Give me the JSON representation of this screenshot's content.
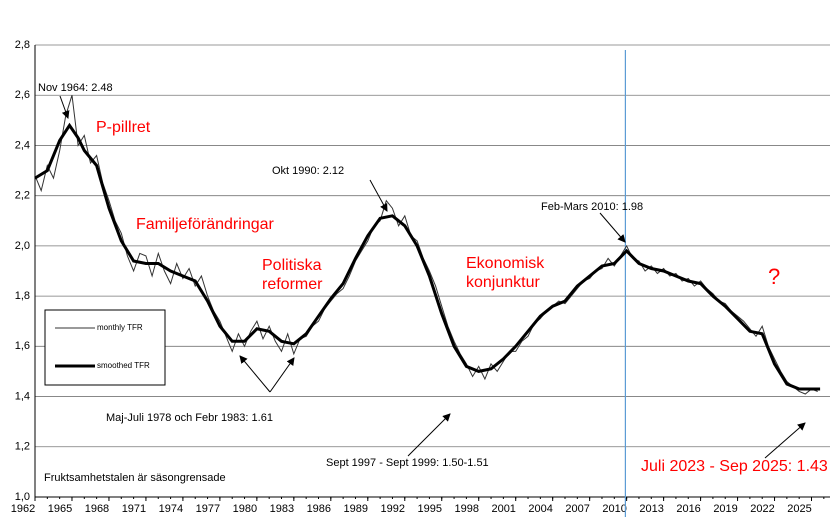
{
  "chart_data": {
    "type": "line",
    "xlim": [
      1962,
      2026.5
    ],
    "xticks": [
      1962,
      1965,
      1968,
      1971,
      1974,
      1977,
      1980,
      1983,
      1986,
      1989,
      1992,
      1995,
      1998,
      2001,
      2004,
      2007,
      2010,
      2013,
      2016,
      2019,
      2022,
      2025
    ],
    "ylim": [
      1.0,
      2.8
    ],
    "yticks": [
      {
        "value": 1.0,
        "label": "1,0"
      },
      {
        "value": 1.2,
        "label": "1,2"
      },
      {
        "value": 1.4,
        "label": "1,4"
      },
      {
        "value": 1.6,
        "label": "1,6"
      },
      {
        "value": 1.8,
        "label": "1,8"
      },
      {
        "value": 2.0,
        "label": "2,0"
      },
      {
        "value": 2.2,
        "label": "2,2"
      },
      {
        "value": 2.4,
        "label": "2,4"
      },
      {
        "value": 2.6,
        "label": "2,6"
      },
      {
        "value": 2.8,
        "label": "2,8"
      }
    ],
    "grid": true,
    "vline": {
      "x": 2009.9,
      "color": "#5b9bd5"
    },
    "series": [
      {
        "name": "monthly TFR",
        "color": "#333333",
        "x": [
          1962.0,
          1962.5,
          1963.0,
          1963.5,
          1964.0,
          1964.5,
          1965.0,
          1965.5,
          1966.0,
          1966.5,
          1967.0,
          1967.5,
          1968.0,
          1968.5,
          1969.0,
          1969.5,
          1970.0,
          1970.5,
          1971.0,
          1971.5,
          1972.0,
          1972.5,
          1973.0,
          1973.5,
          1974.0,
          1974.5,
          1975.0,
          1975.5,
          1976.0,
          1976.5,
          1977.0,
          1977.5,
          1978.0,
          1978.5,
          1979.0,
          1979.5,
          1980.0,
          1980.5,
          1981.0,
          1981.5,
          1982.0,
          1982.5,
          1983.0,
          1983.5,
          1984.0,
          1984.5,
          1985.0,
          1985.5,
          1986.0,
          1986.5,
          1987.0,
          1987.5,
          1988.0,
          1988.5,
          1989.0,
          1989.5,
          1990.0,
          1990.5,
          1991.0,
          1991.5,
          1992.0,
          1992.5,
          1993.0,
          1993.5,
          1994.0,
          1994.5,
          1995.0,
          1995.5,
          1996.0,
          1996.5,
          1997.0,
          1997.5,
          1998.0,
          1998.5,
          1999.0,
          1999.5,
          2000.0,
          2000.5,
          2001.0,
          2001.5,
          2002.0,
          2002.5,
          2003.0,
          2003.5,
          2004.0,
          2004.5,
          2005.0,
          2005.5,
          2006.0,
          2006.5,
          2007.0,
          2007.5,
          2008.0,
          2008.5,
          2009.0,
          2009.5,
          2010.0,
          2010.5,
          2011.0,
          2011.5,
          2012.0,
          2012.5,
          2013.0,
          2013.5,
          2014.0,
          2014.5,
          2015.0,
          2015.5,
          2016.0,
          2016.5,
          2017.0,
          2017.5,
          2018.0,
          2018.5,
          2019.0,
          2019.5,
          2020.0,
          2020.5,
          2021.0,
          2021.5,
          2022.0,
          2022.5,
          2023.0,
          2023.5,
          2024.0,
          2024.5,
          2025.0,
          2025.5
        ],
        "values": [
          2.28,
          2.22,
          2.32,
          2.27,
          2.38,
          2.52,
          2.6,
          2.4,
          2.44,
          2.33,
          2.36,
          2.25,
          2.18,
          2.1,
          2.05,
          1.96,
          1.9,
          1.97,
          1.96,
          1.88,
          1.97,
          1.9,
          1.85,
          1.93,
          1.87,
          1.91,
          1.84,
          1.88,
          1.8,
          1.74,
          1.7,
          1.64,
          1.58,
          1.65,
          1.6,
          1.66,
          1.7,
          1.63,
          1.68,
          1.62,
          1.58,
          1.65,
          1.57,
          1.63,
          1.64,
          1.68,
          1.7,
          1.75,
          1.78,
          1.81,
          1.83,
          1.88,
          1.94,
          1.98,
          2.02,
          2.08,
          2.1,
          2.18,
          2.15,
          2.08,
          2.12,
          2.04,
          2.02,
          1.95,
          1.9,
          1.84,
          1.76,
          1.68,
          1.62,
          1.57,
          1.53,
          1.48,
          1.52,
          1.47,
          1.53,
          1.5,
          1.54,
          1.58,
          1.58,
          1.62,
          1.64,
          1.69,
          1.71,
          1.74,
          1.76,
          1.78,
          1.77,
          1.8,
          1.83,
          1.86,
          1.87,
          1.9,
          1.91,
          1.95,
          1.92,
          1.96,
          2.0,
          1.95,
          1.94,
          1.9,
          1.92,
          1.89,
          1.91,
          1.88,
          1.89,
          1.86,
          1.87,
          1.84,
          1.86,
          1.83,
          1.81,
          1.78,
          1.77,
          1.74,
          1.72,
          1.7,
          1.67,
          1.64,
          1.68,
          1.6,
          1.55,
          1.5,
          1.46,
          1.44,
          1.42,
          1.41,
          1.43,
          1.42
        ]
      },
      {
        "name": "smoothed TFR",
        "color": "#000000",
        "x": [
          1962,
          1963,
          1964,
          1964.8,
          1965.5,
          1966,
          1967,
          1968,
          1969,
          1970,
          1971,
          1972,
          1973,
          1974,
          1975,
          1976,
          1977,
          1978,
          1979,
          1980,
          1981,
          1982,
          1983,
          1984,
          1985,
          1986,
          1987,
          1988,
          1989,
          1990,
          1991,
          1992,
          1993,
          1994,
          1995,
          1996,
          1997,
          1998,
          1999,
          2000,
          2001,
          2002,
          2003,
          2004,
          2005,
          2006,
          2007,
          2008,
          2009,
          2010,
          2011,
          2012,
          2013,
          2014,
          2015,
          2016,
          2017,
          2018,
          2019,
          2020,
          2021,
          2022,
          2023,
          2024,
          2025,
          2025.7
        ],
        "values": [
          2.27,
          2.3,
          2.42,
          2.48,
          2.43,
          2.38,
          2.32,
          2.15,
          2.02,
          1.94,
          1.93,
          1.93,
          1.9,
          1.88,
          1.86,
          1.78,
          1.68,
          1.62,
          1.62,
          1.67,
          1.66,
          1.62,
          1.61,
          1.65,
          1.72,
          1.79,
          1.85,
          1.95,
          2.04,
          2.11,
          2.12,
          2.08,
          2.0,
          1.88,
          1.73,
          1.6,
          1.52,
          1.5,
          1.51,
          1.55,
          1.6,
          1.66,
          1.72,
          1.76,
          1.78,
          1.84,
          1.88,
          1.92,
          1.93,
          1.98,
          1.93,
          1.91,
          1.9,
          1.88,
          1.86,
          1.85,
          1.8,
          1.76,
          1.71,
          1.66,
          1.65,
          1.53,
          1.45,
          1.43,
          1.43,
          1.43
        ]
      }
    ],
    "annotations": [
      {
        "text": "Nov 1964: 2.48",
        "color": "#000000"
      },
      {
        "text": "P-pillret",
        "color": "#ff0000"
      },
      {
        "text": "Okt 1990: 2.12",
        "color": "#000000"
      },
      {
        "text": "Familjeförändringar",
        "color": "#ff0000"
      },
      {
        "text": "Politiska",
        "color": "#ff0000"
      },
      {
        "text": "reformer",
        "color": "#ff0000"
      },
      {
        "text": "Ekonomisk",
        "color": "#ff0000"
      },
      {
        "text": "konjunktur",
        "color": "#ff0000"
      },
      {
        "text": "Feb-Mars 2010: 1.98",
        "color": "#000000"
      },
      {
        "text": "?",
        "color": "#ff0000"
      },
      {
        "text": "Maj-Juli 1978 och Febr 1983: 1.61",
        "color": "#000000"
      },
      {
        "text": "Sept 1997 - Sept 1999: 1.50-1.51",
        "color": "#000000"
      },
      {
        "text": "Juli 2023 - Sep 2025: 1.43",
        "color": "#ff0000"
      },
      {
        "text": "Fruktsamhetstalen är säsongrensade",
        "color": "#000000"
      }
    ]
  }
}
